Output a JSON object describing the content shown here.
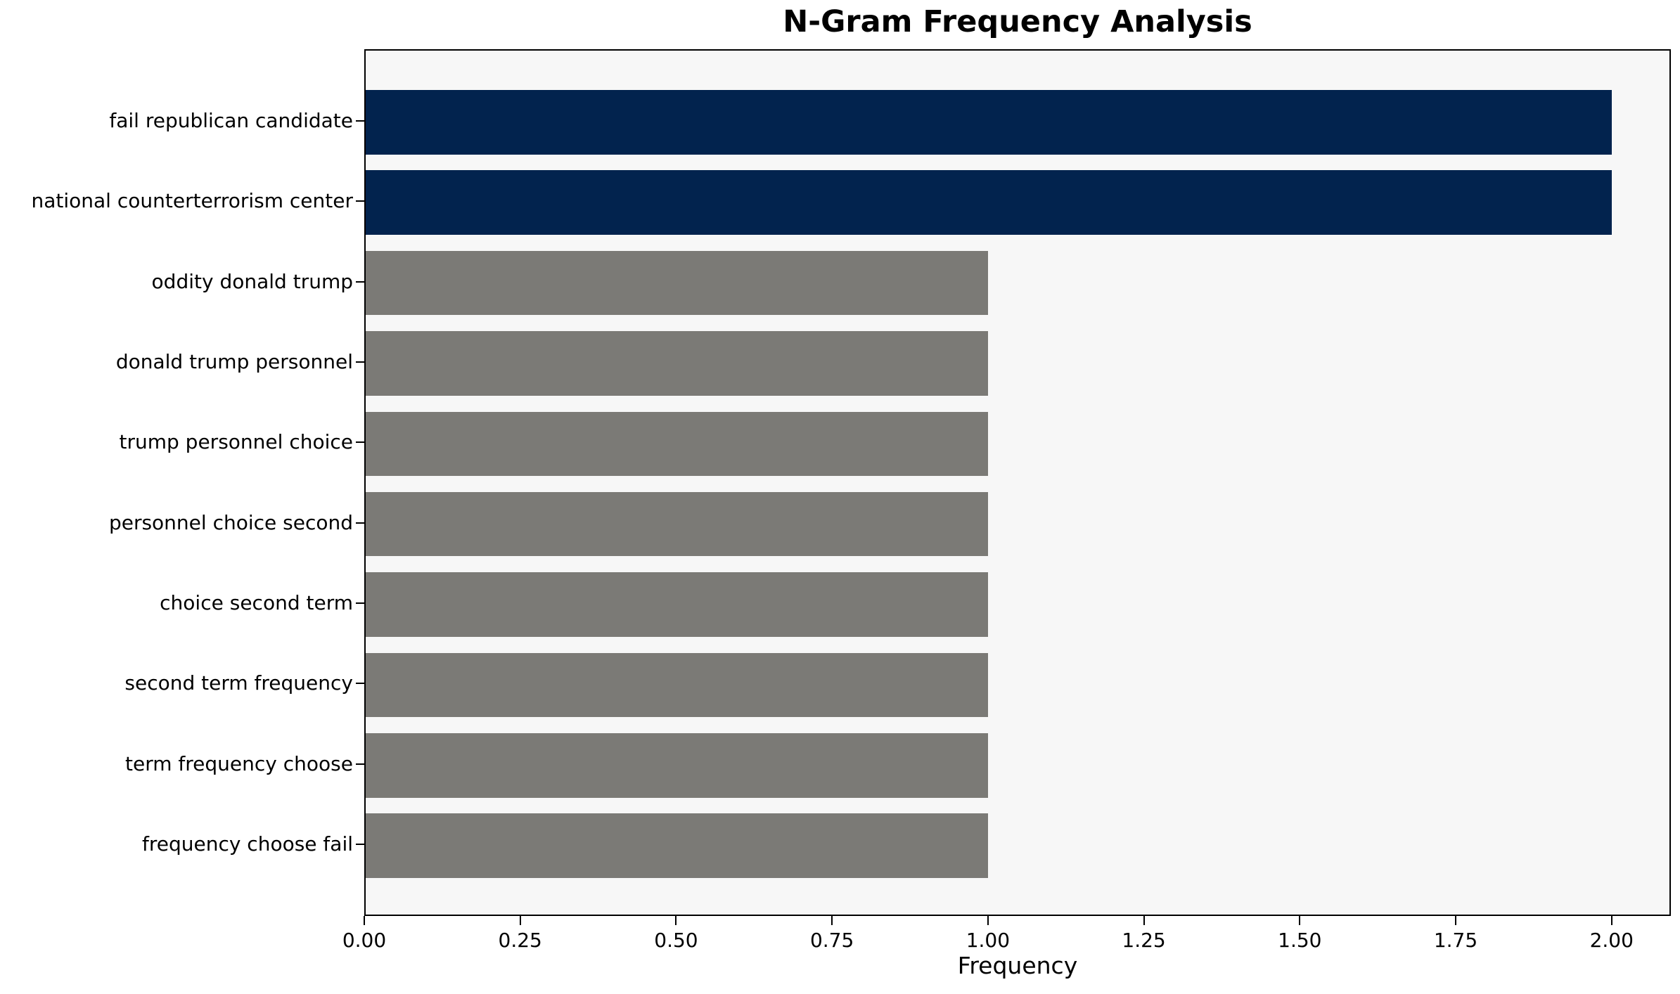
{
  "chart_data": {
    "type": "bar",
    "orientation": "horizontal",
    "title": "N-Gram Frequency Analysis",
    "xlabel": "Frequency",
    "ylabel": "",
    "categories": [
      "fail republican candidate",
      "national counterterrorism center",
      "oddity donald trump",
      "donald trump personnel",
      "trump personnel choice",
      "personnel choice second",
      "choice second term",
      "second term frequency",
      "term frequency choose",
      "frequency choose fail"
    ],
    "values": [
      2,
      2,
      1,
      1,
      1,
      1,
      1,
      1,
      1,
      1
    ],
    "bar_colors": [
      "#02234E",
      "#02234E",
      "#7B7A76",
      "#7B7A76",
      "#7B7A76",
      "#7B7A76",
      "#7B7A76",
      "#7B7A76",
      "#7B7A76",
      "#7B7A76"
    ],
    "xticks": [
      {
        "value": 0.0,
        "label": "0.00"
      },
      {
        "value": 0.25,
        "label": "0.25"
      },
      {
        "value": 0.5,
        "label": "0.50"
      },
      {
        "value": 0.75,
        "label": "0.75"
      },
      {
        "value": 1.0,
        "label": "1.00"
      },
      {
        "value": 1.25,
        "label": "1.25"
      },
      {
        "value": 1.5,
        "label": "1.50"
      },
      {
        "value": 1.75,
        "label": "1.75"
      },
      {
        "value": 2.0,
        "label": "2.00"
      }
    ],
    "xlim": [
      0,
      2.095
    ],
    "grid": false,
    "legend": null,
    "colors": {
      "highlight_bar": "#02234E",
      "default_bar": "#7B7A76",
      "plot_background": "#F7F7F7",
      "figure_background": "#FFFFFF",
      "spine": "#000000",
      "text": "#000000"
    }
  }
}
